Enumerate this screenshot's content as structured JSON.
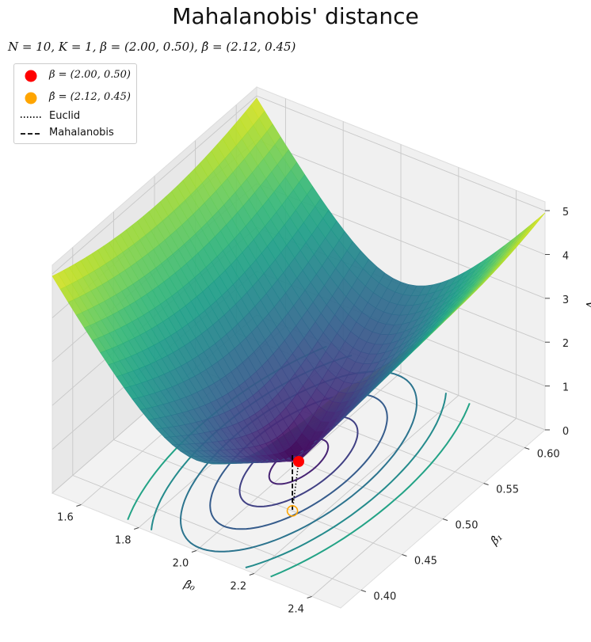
{
  "chart_data": {
    "type": "surface3d",
    "title": "Mahalanobis' distance",
    "subtitle": "N = 10, K = 1, β = (2.00, 0.50), β̂ = (2.12, 0.45)",
    "xlabel": "β̂₀",
    "ylabel": "β̂₁",
    "zlabel": "V",
    "x_ticks": [
      "1.6",
      "1.8",
      "2.0",
      "2.2",
      "2.4"
    ],
    "y_ticks": [
      "0.40",
      "0.45",
      "0.50",
      "0.55",
      "0.60"
    ],
    "z_ticks": [
      "0",
      "1",
      "2",
      "3",
      "4",
      "5"
    ],
    "xlim": [
      1.5,
      2.5
    ],
    "ylim": [
      0.375,
      0.625
    ],
    "zlim": [
      0,
      5.2
    ],
    "surface": {
      "colormap": "viridis",
      "minimum": [
        2.0,
        0.5,
        0
      ],
      "corner_values": [
        4.5,
        5.0,
        4.5,
        5.0
      ]
    },
    "contour_levels": [
      0.5,
      1.0,
      1.5,
      2.0,
      2.5,
      3.0
    ],
    "points": [
      {
        "name": "β = (2.00, 0.50)",
        "x": 2.0,
        "y": 0.5,
        "z": 0,
        "color": "#ff0000"
      },
      {
        "name": "β̂ = (2.12, 0.45)",
        "x": 2.12,
        "y": 0.45,
        "z": 0,
        "color": "#ffa500"
      }
    ],
    "lines": [
      {
        "name": "Euclid",
        "style": "dotted",
        "color": "#000000"
      },
      {
        "name": "Mahalanobis",
        "style": "dashed",
        "color": "#000000"
      }
    ],
    "grid": true,
    "legend_position": "upper-left"
  }
}
